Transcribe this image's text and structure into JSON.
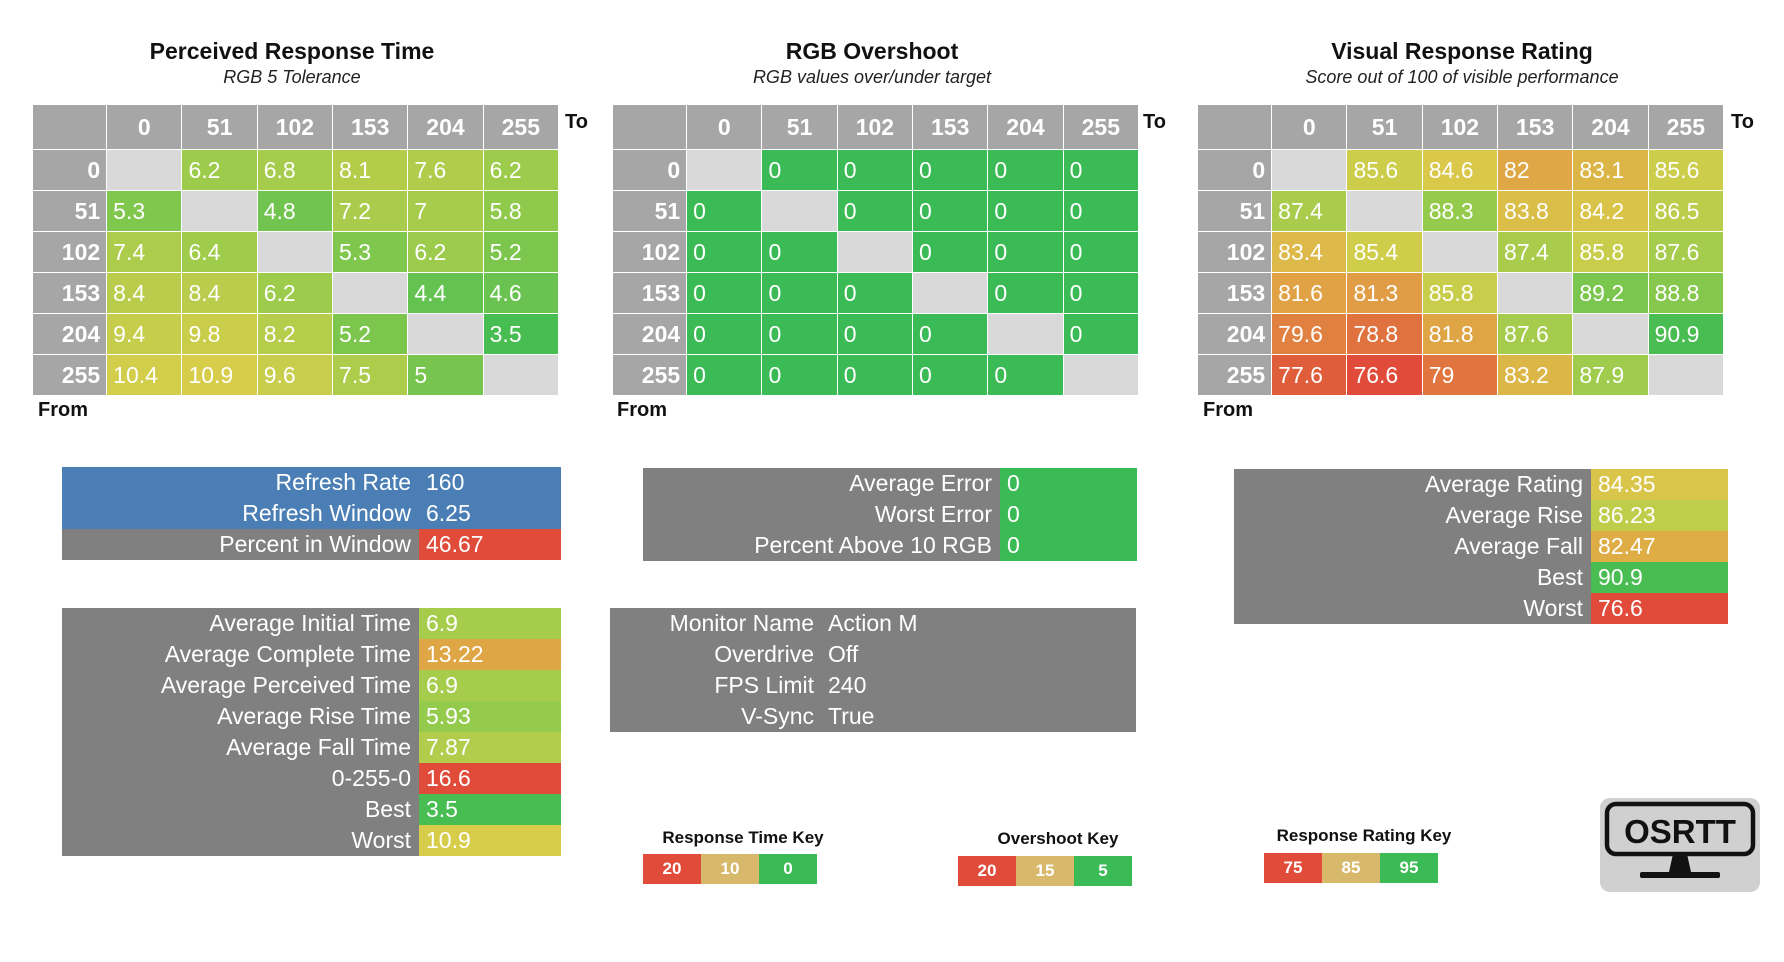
{
  "colors": {
    "header_gray": "#a6a6a6",
    "diagonal_gray": "#d9d9d9",
    "stat_gray": "#808080",
    "blue": "#4a7eb5",
    "red": "#e04b3a",
    "orange": "#e0a145",
    "yellow": "#d8cd4a",
    "green": "#3bbb55"
  },
  "panels": [
    {
      "title": "Perceived Response Time",
      "subtitle": "RGB 5 Tolerance"
    },
    {
      "title": "RGB Overshoot",
      "subtitle": "RGB values over/under target"
    },
    {
      "title": "Visual Response Rating",
      "subtitle": "Score out of 100 of visible performance"
    }
  ],
  "axis": {
    "to": "To",
    "from": "From"
  },
  "chart_data": [
    {
      "type": "heatmap",
      "title": "Perceived Response Time",
      "subtitle": "RGB 5 Tolerance",
      "xlabel": "To",
      "ylabel": "From",
      "x": [
        "0",
        "51",
        "102",
        "153",
        "204",
        "255"
      ],
      "y": [
        "0",
        "51",
        "102",
        "153",
        "204",
        "255"
      ],
      "values": [
        [
          null,
          "6.2",
          "6.8",
          "8.1",
          "7.6",
          "6.2"
        ],
        [
          "5.3",
          null,
          "4.8",
          "7.2",
          "7",
          "5.8"
        ],
        [
          "7.4",
          "6.4",
          null,
          "5.3",
          "6.2",
          "5.2"
        ],
        [
          "8.4",
          "8.4",
          "6.2",
          null,
          "4.4",
          "4.6"
        ],
        [
          "9.4",
          "9.8",
          "8.2",
          "5.2",
          null,
          "3.5"
        ],
        [
          "10.4",
          "10.9",
          "9.6",
          "7.5",
          "5",
          null
        ]
      ],
      "color_scale": {
        "points": [
          0,
          10,
          20
        ]
      }
    },
    {
      "type": "heatmap",
      "title": "RGB Overshoot",
      "subtitle": "RGB values over/under target",
      "xlabel": "To",
      "ylabel": "From",
      "x": [
        "0",
        "51",
        "102",
        "153",
        "204",
        "255"
      ],
      "y": [
        "0",
        "51",
        "102",
        "153",
        "204",
        "255"
      ],
      "values": [
        [
          null,
          "0",
          "0",
          "0",
          "0",
          "0"
        ],
        [
          "0",
          null,
          "0",
          "0",
          "0",
          "0"
        ],
        [
          "0",
          "0",
          null,
          "0",
          "0",
          "0"
        ],
        [
          "0",
          "0",
          "0",
          null,
          "0",
          "0"
        ],
        [
          "0",
          "0",
          "0",
          "0",
          null,
          "0"
        ],
        [
          "0",
          "0",
          "0",
          "0",
          "0",
          null
        ]
      ],
      "color_scale": {
        "points": [
          5,
          15,
          20
        ]
      }
    },
    {
      "type": "heatmap",
      "title": "Visual Response Rating",
      "subtitle": "Score out of 100 of visible performance",
      "xlabel": "To",
      "ylabel": "From",
      "x": [
        "0",
        "51",
        "102",
        "153",
        "204",
        "255"
      ],
      "y": [
        "0",
        "51",
        "102",
        "153",
        "204",
        "255"
      ],
      "values": [
        [
          null,
          "85.6",
          "84.6",
          "82",
          "83.1",
          "85.6"
        ],
        [
          "87.4",
          null,
          "88.3",
          "83.8",
          "84.2",
          "86.5"
        ],
        [
          "83.4",
          "85.4",
          null,
          "87.4",
          "85.8",
          "87.6"
        ],
        [
          "81.6",
          "81.3",
          "85.8",
          null,
          "89.2",
          "88.8"
        ],
        [
          "79.6",
          "78.8",
          "81.8",
          "87.6",
          null,
          "90.9"
        ],
        [
          "77.6",
          "76.6",
          "79",
          "83.2",
          "87.9",
          null
        ]
      ],
      "color_scale": {
        "points": [
          75,
          85,
          95
        ]
      }
    }
  ],
  "refresh_stats": [
    {
      "label": "Refresh Rate",
      "value": "160"
    },
    {
      "label": "Refresh Window",
      "value": "6.25"
    },
    {
      "label": "Percent in Window",
      "value": "46.67"
    }
  ],
  "time_stats": [
    {
      "label": "Average Initial Time",
      "value": "6.9"
    },
    {
      "label": "Average Complete Time",
      "value": "13.22"
    },
    {
      "label": "Average Perceived Time",
      "value": "6.9"
    },
    {
      "label": "Average Rise Time",
      "value": "5.93"
    },
    {
      "label": "Average Fall Time",
      "value": "7.87"
    },
    {
      "label": "0-255-0",
      "value": "16.6"
    },
    {
      "label": "Best",
      "value": "3.5"
    },
    {
      "label": "Worst",
      "value": "10.9"
    }
  ],
  "error_stats": [
    {
      "label": "Average Error",
      "value": "0"
    },
    {
      "label": "Worst Error",
      "value": "0"
    },
    {
      "label": "Percent Above 10 RGB",
      "value": "0"
    }
  ],
  "monitor_info": [
    {
      "label": "Monitor Name",
      "value": "Action M"
    },
    {
      "label": "Overdrive",
      "value": "Off"
    },
    {
      "label": "FPS Limit",
      "value": "240"
    },
    {
      "label": "V-Sync",
      "value": "True"
    }
  ],
  "rating_stats": [
    {
      "label": "Average Rating",
      "value": "84.35"
    },
    {
      "label": "Average Rise",
      "value": "86.23"
    },
    {
      "label": "Average Fall",
      "value": "82.47"
    },
    {
      "label": "Best",
      "value": "90.9"
    },
    {
      "label": "Worst",
      "value": "76.6"
    }
  ],
  "keys": [
    {
      "title": "Response Time Key",
      "cells": [
        "20",
        "10",
        "0"
      ]
    },
    {
      "title": "Overshoot Key",
      "cells": [
        "20",
        "15",
        "5"
      ]
    },
    {
      "title": "Response Rating Key",
      "cells": [
        "75",
        "85",
        "95"
      ]
    }
  ],
  "logo": {
    "text": "OSRTT",
    "icon": "monitor-icon"
  }
}
